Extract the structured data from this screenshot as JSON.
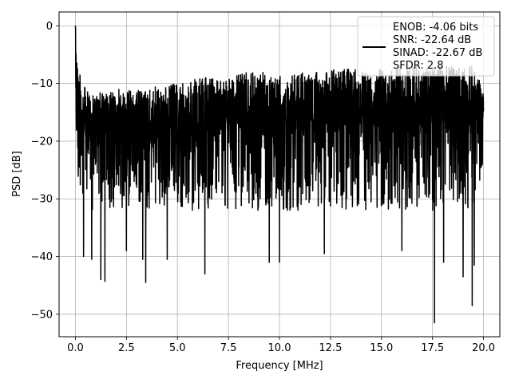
{
  "chart_data": {
    "type": "line",
    "xlabel": "Frequency [MHz]",
    "ylabel": "PSD [dB]",
    "xlim": [
      -0.8,
      20.8
    ],
    "ylim": [
      -53.9,
      2.4
    ],
    "xticks": [
      0.0,
      2.5,
      5.0,
      7.5,
      10.0,
      12.5,
      15.0,
      17.5,
      20.0
    ],
    "xtick_labels": [
      "0.0",
      "2.5",
      "5.0",
      "7.5",
      "10.0",
      "12.5",
      "15.0",
      "17.5",
      "20.0"
    ],
    "yticks": [
      0,
      -10,
      -20,
      -30,
      -40,
      -50
    ],
    "ytick_labels": [
      "0",
      "−10",
      "−20",
      "−30",
      "−40",
      "−50"
    ],
    "grid": true,
    "legend": {
      "placement": "top-right",
      "lines": [
        "ENOB: -4.06 bits",
        "SNR: -22.64 dB",
        "SINAD: -22.67 dB",
        "SFDR: 2.8"
      ]
    },
    "series": [
      {
        "color": "#000000",
        "envelope": {
          "x": [
            0.0,
            0.1,
            0.25,
            0.5,
            0.75,
            1.0,
            1.25,
            1.5,
            1.75,
            2.0,
            2.5,
            3.0,
            3.5,
            4.0,
            4.5,
            5.0,
            5.5,
            6.0,
            6.5,
            7.0,
            7.5,
            8.0,
            8.5,
            9.0,
            9.5,
            10.0,
            10.5,
            11.0,
            11.5,
            12.0,
            12.5,
            13.0,
            13.5,
            14.0,
            14.5,
            15.0,
            15.5,
            16.0,
            16.5,
            17.0,
            17.5,
            18.0,
            18.5,
            19.0,
            19.5,
            20.0
          ],
          "upper": [
            0,
            -5,
            -9,
            -11,
            -12,
            -12,
            -11.5,
            -11.5,
            -11.5,
            -11,
            -11,
            -11,
            -11,
            -10.5,
            -10,
            -10,
            -10,
            -9,
            -9,
            -8.5,
            -8.5,
            -8.5,
            -8,
            -8,
            -8,
            -8,
            -8,
            -8,
            -8,
            -8,
            -7.5,
            -7.5,
            -7.5,
            -7.5,
            -7.5,
            -7.5,
            -7.5,
            -7,
            -7,
            -7,
            -7,
            -7,
            -7,
            -7,
            -7,
            -11
          ],
          "lower": [
            -20,
            -26,
            -30,
            -31,
            -32,
            -32,
            -32,
            -32,
            -32,
            -32,
            -32,
            -32,
            -32,
            -32,
            -32,
            -32,
            -32,
            -32,
            -32,
            -32,
            -32,
            -32,
            -32,
            -32,
            -32,
            -32,
            -32,
            -32,
            -32,
            -32,
            -32,
            -32,
            -32,
            -32,
            -32,
            -32,
            -32,
            -32,
            -32,
            -32,
            -32,
            -32,
            -32,
            -32,
            -32,
            -25
          ],
          "typical_min": [
            -20,
            -24,
            -28,
            -27,
            -27,
            -27,
            -28,
            -28,
            -28,
            -28,
            -28,
            -28,
            -28,
            -28,
            -28,
            -28,
            -28,
            -28,
            -28,
            -28,
            -28,
            -28,
            -28,
            -28,
            -28,
            -28,
            -28,
            -28,
            -28,
            -28,
            -28,
            -28,
            -28,
            -28,
            -28,
            -28,
            -28,
            -28,
            -28,
            -28,
            -28,
            -28,
            -28,
            -28,
            -28,
            -24
          ]
        },
        "deep_dips": [
          {
            "x": 0.4,
            "y": -40
          },
          {
            "x": 0.8,
            "y": -40.5
          },
          {
            "x": 1.25,
            "y": -44
          },
          {
            "x": 1.45,
            "y": -44.3
          },
          {
            "x": 2.5,
            "y": -39
          },
          {
            "x": 3.3,
            "y": -40.5
          },
          {
            "x": 3.45,
            "y": -44.5
          },
          {
            "x": 4.5,
            "y": -40.5
          },
          {
            "x": 6.35,
            "y": -43
          },
          {
            "x": 9.5,
            "y": -41
          },
          {
            "x": 10.0,
            "y": -41
          },
          {
            "x": 12.2,
            "y": -39.5
          },
          {
            "x": 16.0,
            "y": -39
          },
          {
            "x": 17.6,
            "y": -51.5
          },
          {
            "x": 18.05,
            "y": -41
          },
          {
            "x": 19.0,
            "y": -43.5
          },
          {
            "x": 19.45,
            "y": -48.5
          },
          {
            "x": 19.55,
            "y": -41.5
          }
        ]
      }
    ]
  }
}
